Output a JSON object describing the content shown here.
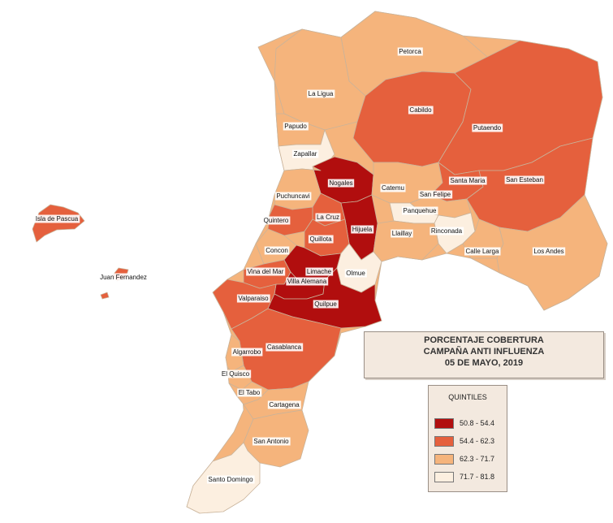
{
  "title": {
    "line1": "PORCENTAJE COBERTURA",
    "line2": "CAMPAÑA ANTI INFLUENZA",
    "line3": "05 DE MAYO, 2019"
  },
  "legend": {
    "title": "QUINTILES",
    "items": [
      {
        "label": "50.8 - 54.4",
        "color": "#b10e0e"
      },
      {
        "label": "54.4 - 62.3",
        "color": "#e5603d"
      },
      {
        "label": "62.3 - 71.7",
        "color": "#f5b47c"
      },
      {
        "label": "71.7 - 81.8",
        "color": "#fcefe0"
      }
    ]
  },
  "communes": [
    {
      "name": "Petorca",
      "class": 2
    },
    {
      "name": "La Ligua",
      "class": 2
    },
    {
      "name": "Cabildo",
      "class": 1
    },
    {
      "name": "Papudo",
      "class": 2
    },
    {
      "name": "Zapallar",
      "class": 3
    },
    {
      "name": "Putaendo",
      "class": 1
    },
    {
      "name": "Nogales",
      "class": 0
    },
    {
      "name": "Catemu",
      "class": 2
    },
    {
      "name": "Santa Maria",
      "class": 1
    },
    {
      "name": "San Esteban",
      "class": 1
    },
    {
      "name": "Puchuncavi",
      "class": 2
    },
    {
      "name": "San Felipe",
      "class": 2
    },
    {
      "name": "Panquehue",
      "class": 3
    },
    {
      "name": "La Cruz",
      "class": 1
    },
    {
      "name": "Hijuela",
      "class": 0
    },
    {
      "name": "Quintero",
      "class": 1
    },
    {
      "name": "Isla de Pascua",
      "class": 1
    },
    {
      "name": "Rinconada",
      "class": 3
    },
    {
      "name": "Llaillay",
      "class": 2
    },
    {
      "name": "Quillota",
      "class": 1
    },
    {
      "name": "Calle Larga",
      "class": 2
    },
    {
      "name": "Los Andes",
      "class": 2
    },
    {
      "name": "Concon",
      "class": 2
    },
    {
      "name": "Vina del Mar",
      "class": 1
    },
    {
      "name": "Limache",
      "class": 0
    },
    {
      "name": "Olmue",
      "class": 3
    },
    {
      "name": "Juan Fernandez",
      "class": 1
    },
    {
      "name": "Villa Alemana",
      "class": 0
    },
    {
      "name": "Valparaiso",
      "class": 1
    },
    {
      "name": "Quilpue",
      "class": 0
    },
    {
      "name": "Casablanca",
      "class": 1
    },
    {
      "name": "Algarrobo",
      "class": 2
    },
    {
      "name": "El Quisco",
      "class": 2
    },
    {
      "name": "El Tabo",
      "class": 2
    },
    {
      "name": "Cartagena",
      "class": 2
    },
    {
      "name": "San Antonio",
      "class": 2
    },
    {
      "name": "Santo Domingo",
      "class": 3
    }
  ]
}
